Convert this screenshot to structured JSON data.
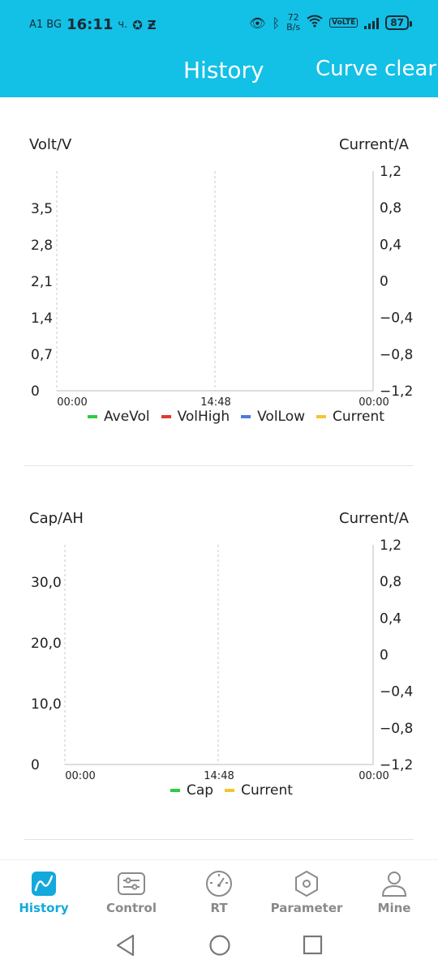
{
  "status_bar": {
    "carrier": "A1 BG",
    "time": "16:11",
    "suffix": "ч.",
    "speed_value": "72",
    "speed_unit": "B/s",
    "volte": "VoLTE",
    "battery": "87"
  },
  "header": {
    "title": "History",
    "action": "Curve clear",
    "color": "#13c0e6"
  },
  "chart1": {
    "left_label": "Volt/V",
    "right_label": "Current/A",
    "legend": [
      {
        "name": "AveVol",
        "color": "#2ecc40"
      },
      {
        "name": "VolHigh",
        "color": "#e03a2c"
      },
      {
        "name": "VolLow",
        "color": "#4a7bd8"
      },
      {
        "name": "Current",
        "color": "#f2c531"
      }
    ]
  },
  "chart2": {
    "left_label": "Cap/AH",
    "right_label": "Current/A",
    "legend": [
      {
        "name": "Cap",
        "color": "#2ecc40"
      },
      {
        "name": "Current",
        "color": "#f2c531"
      }
    ]
  },
  "chart_data": [
    {
      "type": "line",
      "ylabel": "Volt/V",
      "y2label": "Current/A",
      "x_ticks": [
        "00:00",
        "14:48",
        "00:00"
      ],
      "y_ticks": [
        "0",
        "0,7",
        "1,4",
        "2,1",
        "2,8",
        "3,5"
      ],
      "y2_ticks": [
        "1,2",
        "0,8",
        "0,4",
        "0",
        "−0,4",
        "−0,8",
        "−1,2"
      ],
      "series": [
        {
          "name": "AveVol",
          "values": []
        },
        {
          "name": "VolHigh",
          "values": []
        },
        {
          "name": "VolLow",
          "values": []
        },
        {
          "name": "Current",
          "values": []
        }
      ]
    },
    {
      "type": "line",
      "ylabel": "Cap/AH",
      "y2label": "Current/A",
      "x_ticks": [
        "00:00",
        "14:48",
        "00:00"
      ],
      "y_ticks": [
        "0",
        "10,0",
        "20,0",
        "30,0"
      ],
      "y2_ticks": [
        "1,2",
        "0,8",
        "0,4",
        "0",
        "−0,4",
        "−0,8",
        "−1,2"
      ],
      "series": [
        {
          "name": "Cap",
          "values": []
        },
        {
          "name": "Current",
          "values": []
        }
      ]
    }
  ],
  "nav": {
    "items": [
      {
        "label": "History",
        "icon": "history-chart-icon"
      },
      {
        "label": "Control",
        "icon": "sliders-icon"
      },
      {
        "label": "RT",
        "icon": "gauge-icon"
      },
      {
        "label": "Parameter",
        "icon": "hexagon-nut-icon"
      },
      {
        "label": "Mine",
        "icon": "person-icon"
      }
    ]
  }
}
